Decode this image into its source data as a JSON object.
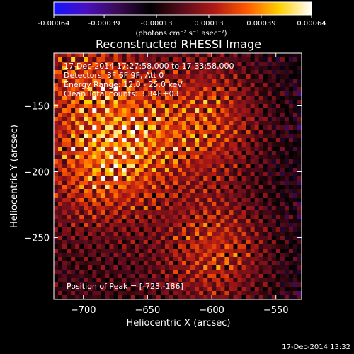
{
  "colorbar": {
    "ticks": [
      "-0.00064",
      "-0.00039",
      "-0.00013",
      "0.00013",
      "0.00039",
      "0.00064"
    ],
    "tick_values": [
      -0.00064,
      -0.00039,
      -0.00013,
      0.00013,
      0.00039,
      0.00064
    ],
    "unit_text": "(photons cm⁻² s⁻¹ asec⁻²)",
    "colors": [
      "#1414ff",
      "#4a0fc0",
      "#3a0a52",
      "#000000",
      "#5a0c1c",
      "#b11a14",
      "#ff5a00",
      "#ffd000",
      "#ffffff"
    ]
  },
  "chart_data": {
    "type": "heatmap",
    "title": "Reconstructed RHESSI Image",
    "xlabel": "Heliocentric X (arcsec)",
    "ylabel": "Heliocentric Y (arcsec)",
    "xlim": [
      -723,
      -530
    ],
    "ylim": [
      -297,
      -110
    ],
    "x_ticks": [
      -700,
      -650,
      -600,
      -550
    ],
    "y_ticks": [
      -150,
      -200,
      -250
    ],
    "x_tick_labels": [
      "−700",
      "−650",
      "−600",
      "−550"
    ],
    "y_tick_labels": [
      "−150",
      "−200",
      "−250"
    ],
    "peak": {
      "x": -723,
      "y": -186
    },
    "bright_sources": [
      {
        "x": -700,
        "y": -130
      },
      {
        "x": -690,
        "y": -200
      },
      {
        "x": -660,
        "y": -175
      },
      {
        "x": -595,
        "y": -260
      },
      {
        "x": -600,
        "y": -160
      }
    ],
    "annotations": [
      "17-Dec-2014 17:27:58.000 to 17:33:58.000",
      "Detectors: 3F 6F 9F, Att 0",
      "Energy Range: 12.0 - 25.0 keV",
      "Clean     Total counts: 3.34E+03"
    ],
    "peak_label": "Position of Peak = [-723,-186]"
  },
  "footer": {
    "timestamp": "17-Dec-2014 13:32"
  }
}
